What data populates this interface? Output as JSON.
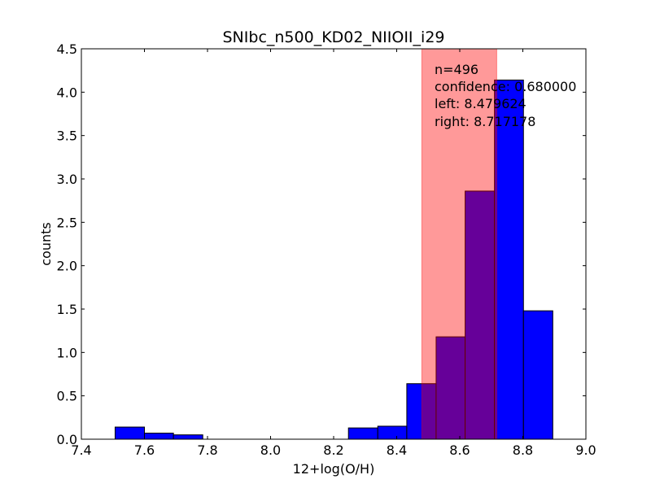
{
  "chart_data": {
    "type": "bar",
    "title": "SNIbc_n500_KD02_NIIOII_i29",
    "xlabel": "12+log(O/H)",
    "ylabel": "counts",
    "xlim": [
      7.4,
      9.0
    ],
    "ylim": [
      0.0,
      4.5
    ],
    "xticks": [
      "7.4",
      "7.6",
      "7.8",
      "8.0",
      "8.2",
      "8.4",
      "8.6",
      "8.8",
      "9.0"
    ],
    "yticks": [
      "0.0",
      "0.5",
      "1.0",
      "1.5",
      "2.0",
      "2.5",
      "3.0",
      "3.5",
      "4.0",
      "4.5"
    ],
    "grid": false,
    "bar_color": "#0000ff",
    "bins": [
      {
        "left": 7.507,
        "right": 7.6,
        "count": 0.14
      },
      {
        "left": 7.6,
        "right": 7.692,
        "count": 0.07
      },
      {
        "left": 7.692,
        "right": 7.785,
        "count": 0.05
      },
      {
        "left": 7.785,
        "right": 7.877,
        "count": 0.0
      },
      {
        "left": 7.877,
        "right": 7.97,
        "count": 0.0
      },
      {
        "left": 7.97,
        "right": 8.062,
        "count": 0.0
      },
      {
        "left": 8.062,
        "right": 8.155,
        "count": 0.0
      },
      {
        "left": 8.155,
        "right": 8.247,
        "count": 0.0
      },
      {
        "left": 8.247,
        "right": 8.34,
        "count": 0.13
      },
      {
        "left": 8.34,
        "right": 8.432,
        "count": 0.15
      },
      {
        "left": 8.432,
        "right": 8.525,
        "count": 0.64
      },
      {
        "left": 8.525,
        "right": 8.617,
        "count": 1.18
      },
      {
        "left": 8.617,
        "right": 8.71,
        "count": 2.86
      },
      {
        "left": 8.71,
        "right": 8.802,
        "count": 4.14
      },
      {
        "left": 8.802,
        "right": 8.895,
        "count": 1.48
      }
    ],
    "confidence_band": {
      "left": 8.479624,
      "right": 8.717178,
      "color": "#ff0000",
      "opacity": 0.4
    },
    "annotation": {
      "n": "n=496",
      "confidence": "confidence: 0.680000",
      "left": "left: 8.479624",
      "right": "right: 8.717178"
    }
  }
}
